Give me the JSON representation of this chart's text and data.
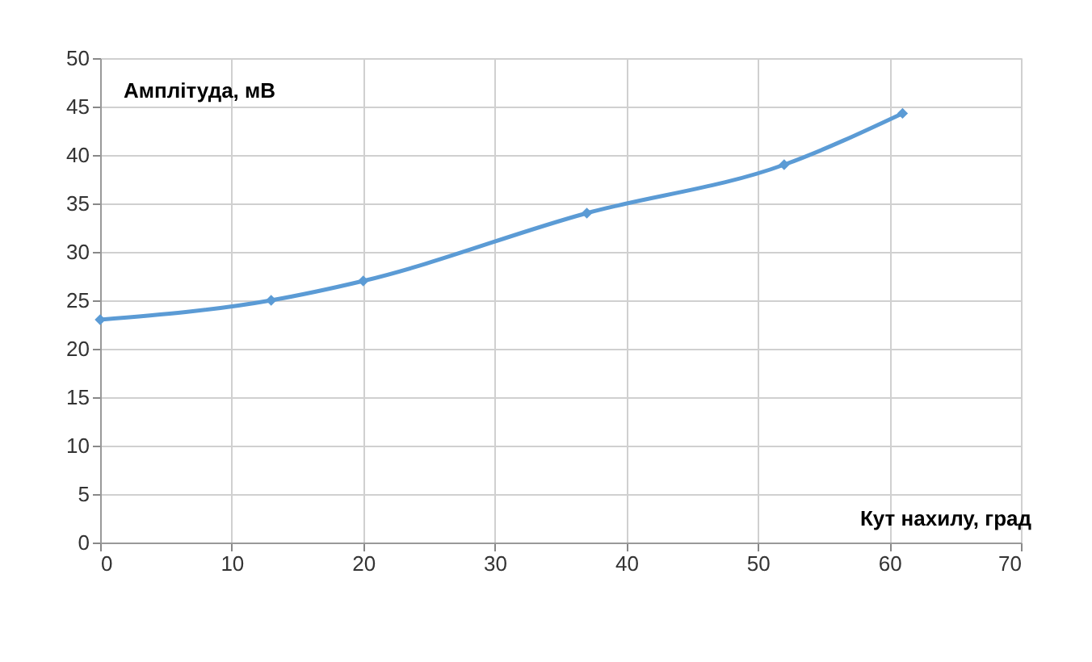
{
  "chart_data": {
    "type": "line",
    "xlabel": "Кут нахилу, град",
    "ylabel": "Амплітуда, мВ",
    "x": [
      0,
      13,
      20,
      37,
      52,
      61
    ],
    "series": [
      {
        "color": "#5b9bd5",
        "values": [
          23,
          25,
          27,
          34,
          39,
          44.3
        ]
      }
    ],
    "xlim": [
      0,
      70
    ],
    "xticks": [
      0,
      10,
      20,
      30,
      40,
      50,
      60,
      70
    ],
    "ylim": [
      0,
      50
    ],
    "yticks": [
      0,
      5,
      10,
      15,
      20,
      25,
      30,
      35,
      40,
      45,
      50
    ],
    "grid": true,
    "marker": "diamond",
    "line_style": "solid"
  }
}
